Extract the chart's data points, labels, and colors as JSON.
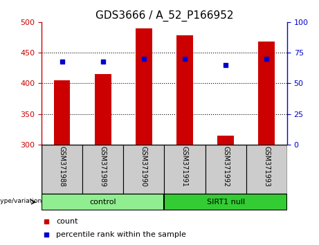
{
  "title": "GDS3666 / A_52_P166952",
  "samples": [
    "GSM371988",
    "GSM371989",
    "GSM371990",
    "GSM371991",
    "GSM371992",
    "GSM371993"
  ],
  "counts": [
    405,
    415,
    490,
    478,
    315,
    468
  ],
  "percentile_ranks": [
    68,
    68,
    70,
    70,
    65,
    70
  ],
  "ymin": 300,
  "ymax": 500,
  "yticks_left": [
    300,
    350,
    400,
    450,
    500
  ],
  "yticks_right": [
    0,
    25,
    50,
    75,
    100
  ],
  "bar_color": "#cc0000",
  "dot_color": "#0000cc",
  "groups": [
    {
      "label": "control",
      "indices": [
        0,
        1,
        2
      ],
      "color": "#90ee90"
    },
    {
      "label": "SIRT1 null",
      "indices": [
        3,
        4,
        5
      ],
      "color": "#33cc33"
    }
  ],
  "group_label": "genotype/variation",
  "legend_count_label": "count",
  "legend_pct_label": "percentile rank within the sample",
  "background_color": "#ffffff",
  "label_area_color": "#cccccc",
  "title_fontsize": 11,
  "tick_fontsize": 8,
  "sample_fontsize": 7,
  "group_fontsize": 8,
  "legend_fontsize": 8
}
